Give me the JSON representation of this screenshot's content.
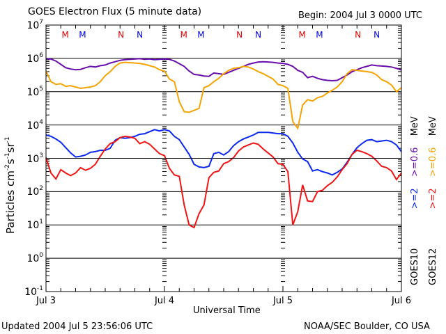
{
  "title": "GOES Electron Flux (5 minute data)",
  "begin_label": "Begin: 2004 Jul 3 0000 UTC",
  "updated_label": "Updated 2004 Jul  5 23:56:06 UTC",
  "credit_label": "NOAA/SEC Boulder, CO USA",
  "ylabel_main": "Particles cm",
  "ylabel_sup1": "-2",
  "ylabel_s": "s",
  "ylabel_sup2": "-1",
  "ylabel_sr": "sr",
  "ylabel_sup3": "-1",
  "legend": {
    "goes10": "GOES10",
    "goes12": "GOES12",
    "g10_ge2": ">=2",
    "g10_ge06": ">=0.6",
    "g12_ge2": ">=2",
    "g12_ge06": ">=0.6",
    "mev1": "MeV",
    "mev2": "MeV"
  },
  "markers": [
    {
      "label": "M",
      "hour": 3.9,
      "color": "#e00000"
    },
    {
      "label": "M",
      "hour": 7.4,
      "color": "#0000e0"
    },
    {
      "label": "N",
      "hour": 15.2,
      "color": "#e00000"
    },
    {
      "label": "N",
      "hour": 19.0,
      "color": "#0000e0"
    },
    {
      "label": "M",
      "hour": 27.9,
      "color": "#e00000"
    },
    {
      "label": "M",
      "hour": 31.4,
      "color": "#0000e0"
    },
    {
      "label": "N",
      "hour": 39.2,
      "color": "#e00000"
    },
    {
      "label": "N",
      "hour": 43.0,
      "color": "#0000e0"
    },
    {
      "label": "M",
      "hour": 51.9,
      "color": "#e00000"
    },
    {
      "label": "M",
      "hour": 55.4,
      "color": "#0000e0"
    },
    {
      "label": "N",
      "hour": 63.2,
      "color": "#e00000"
    },
    {
      "label": "N",
      "hour": 67.0,
      "color": "#0000e0"
    }
  ],
  "chart_data": {
    "type": "line",
    "title": "GOES Electron Flux (5 minute data)",
    "xlabel": "Universal Time",
    "ylabel": "Particles cm-2 s-1 sr-1",
    "yscale": "log",
    "ylim": [
      0.1,
      10000000
    ],
    "xlim_hours": [
      0,
      72
    ],
    "x_tick_labels": [
      {
        "hour": 0,
        "label": "Jul 3"
      },
      {
        "hour": 24,
        "label": "Jul 4"
      },
      {
        "hour": 48,
        "label": "Jul 5"
      },
      {
        "hour": 72,
        "label": "Jul 6"
      }
    ],
    "y_tick_labels": [
      {
        "exp": 7,
        "base": "10",
        "sup": "7"
      },
      {
        "exp": 6,
        "base": "10",
        "sup": "6"
      },
      {
        "exp": 5,
        "base": "10",
        "sup": "5"
      },
      {
        "exp": 4,
        "base": "10",
        "sup": "4"
      },
      {
        "exp": 3,
        "base": "10",
        "sup": "3"
      },
      {
        "exp": 2,
        "base": "10",
        "sup": "2"
      },
      {
        "exp": 1,
        "base": "10",
        "sup": "1"
      },
      {
        "exp": 0,
        "base": "10",
        "sup": "0"
      },
      {
        "exp": -1,
        "base": "10",
        "sup": "-1"
      }
    ],
    "threshold": {
      "value": 1000,
      "style": "dashed"
    },
    "grid": "horizontal at decades",
    "series": [
      {
        "name": "GOES10 >=0.6 MeV",
        "color": "#6a0dad",
        "hours": [
          0,
          1,
          2,
          3,
          4,
          5,
          6,
          7,
          8,
          9,
          10,
          11,
          12,
          13,
          14,
          15,
          16,
          17,
          18,
          19,
          20,
          21,
          22,
          23,
          24,
          25,
          26,
          27,
          28,
          29,
          30,
          31,
          32,
          33,
          34,
          35,
          36,
          37,
          38,
          39,
          40,
          41,
          42,
          43,
          44,
          45,
          46,
          47,
          48,
          49,
          50,
          51,
          52,
          53,
          54,
          55,
          56,
          57,
          58,
          59,
          60,
          61,
          62,
          63,
          64,
          65,
          66,
          67,
          68,
          69,
          70,
          71,
          72
        ],
        "log10": [
          5.98,
          5.98,
          5.92,
          5.82,
          5.72,
          5.68,
          5.66,
          5.67,
          5.72,
          5.76,
          5.74,
          5.78,
          5.8,
          5.86,
          5.9,
          5.94,
          5.96,
          5.97,
          5.98,
          5.99,
          5.97,
          5.98,
          5.96,
          5.97,
          5.98,
          5.97,
          5.92,
          5.84,
          5.76,
          5.62,
          5.52,
          5.5,
          5.47,
          5.46,
          5.56,
          5.54,
          5.52,
          5.58,
          5.64,
          5.7,
          5.76,
          5.82,
          5.86,
          5.89,
          5.9,
          5.89,
          5.88,
          5.86,
          5.85,
          5.82,
          5.76,
          5.64,
          5.58,
          5.42,
          5.46,
          5.4,
          5.36,
          5.34,
          5.33,
          5.34,
          5.42,
          5.5,
          5.6,
          5.66,
          5.72,
          5.76,
          5.8,
          5.78,
          5.77,
          5.76,
          5.74,
          5.7,
          5.65
        ]
      },
      {
        "name": "GOES12 >=0.6 MeV",
        "color": "#f5a300",
        "hours": [
          0,
          1,
          2,
          3,
          4,
          5,
          6,
          7,
          8,
          9,
          10,
          11,
          12,
          13,
          14,
          15,
          16,
          17,
          18,
          19,
          20,
          21,
          22,
          23,
          24,
          25,
          26,
          27,
          28,
          29,
          30,
          31,
          32,
          33,
          34,
          35,
          36,
          37,
          38,
          39,
          40,
          41,
          42,
          43,
          44,
          45,
          46,
          47,
          48,
          49,
          50,
          51,
          52,
          53,
          54,
          55,
          56,
          57,
          58,
          59,
          60,
          61,
          62,
          63,
          64,
          65,
          66,
          67,
          68,
          69,
          70,
          71,
          72
        ],
        "log10": [
          5.62,
          5.3,
          5.22,
          5.24,
          5.16,
          5.18,
          5.14,
          5.1,
          5.12,
          5.14,
          5.18,
          5.3,
          5.48,
          5.6,
          5.76,
          5.86,
          5.88,
          5.87,
          5.86,
          5.85,
          5.82,
          5.78,
          5.74,
          5.66,
          5.62,
          5.38,
          5.3,
          4.7,
          4.4,
          4.38,
          4.44,
          4.5,
          5.12,
          5.18,
          5.3,
          5.4,
          5.54,
          5.64,
          5.7,
          5.72,
          5.76,
          5.74,
          5.68,
          5.6,
          5.54,
          5.46,
          5.38,
          5.22,
          5.18,
          5.1,
          4.1,
          3.9,
          4.6,
          4.76,
          4.72,
          4.82,
          4.86,
          4.96,
          5.04,
          5.14,
          5.3,
          5.54,
          5.66,
          5.64,
          5.62,
          5.6,
          5.58,
          5.5,
          5.36,
          5.3,
          5.2,
          5.0,
          5.12
        ]
      },
      {
        "name": "GOES10 >=2 MeV",
        "color": "#0a28f0",
        "hours": [
          0,
          1,
          2,
          3,
          4,
          5,
          6,
          7,
          8,
          9,
          10,
          11,
          12,
          13,
          14,
          15,
          16,
          17,
          18,
          19,
          20,
          21,
          22,
          23,
          24,
          25,
          26,
          27,
          28,
          29,
          30,
          31,
          32,
          33,
          34,
          35,
          36,
          37,
          38,
          39,
          40,
          41,
          42,
          43,
          44,
          45,
          46,
          47,
          48,
          49,
          50,
          51,
          52,
          53,
          54,
          55,
          56,
          57,
          58,
          59,
          60,
          61,
          62,
          63,
          64,
          65,
          66,
          67,
          68,
          69,
          70,
          71,
          72
        ],
        "log10": [
          3.7,
          3.66,
          3.58,
          3.48,
          3.32,
          3.16,
          3.04,
          3.06,
          3.1,
          3.18,
          3.2,
          3.24,
          3.24,
          3.3,
          3.54,
          3.62,
          3.6,
          3.62,
          3.66,
          3.72,
          3.74,
          3.8,
          3.86,
          3.82,
          3.86,
          3.82,
          3.66,
          3.56,
          3.34,
          3.12,
          2.82,
          2.74,
          2.72,
          2.76,
          3.14,
          3.18,
          3.1,
          3.2,
          3.38,
          3.5,
          3.58,
          3.64,
          3.7,
          3.78,
          3.78,
          3.78,
          3.76,
          3.74,
          3.74,
          3.66,
          3.46,
          3.18,
          2.98,
          2.9,
          2.62,
          2.66,
          2.6,
          2.56,
          2.5,
          2.58,
          2.68,
          2.88,
          3.12,
          3.32,
          3.44,
          3.54,
          3.56,
          3.5,
          3.52,
          3.54,
          3.5,
          3.4,
          3.2
        ]
      },
      {
        "name": "GOES12 >=2 MeV",
        "color": "#f01414",
        "hours": [
          0,
          1,
          2,
          3,
          4,
          5,
          6,
          7,
          8,
          9,
          10,
          11,
          12,
          13,
          14,
          15,
          16,
          17,
          18,
          19,
          20,
          21,
          22,
          23,
          24,
          25,
          26,
          27,
          28,
          29,
          30,
          31,
          32,
          33,
          34,
          35,
          36,
          37,
          38,
          39,
          40,
          41,
          42,
          43,
          44,
          45,
          46,
          47,
          48,
          49,
          50,
          51,
          52,
          53,
          54,
          55,
          56,
          57,
          58,
          59,
          60,
          61,
          62,
          63,
          64,
          65,
          66,
          67,
          68,
          69,
          70,
          71,
          72
        ],
        "log10": [
          3.02,
          2.56,
          2.38,
          2.66,
          2.56,
          2.48,
          2.56,
          2.72,
          2.64,
          2.7,
          2.82,
          3.06,
          3.28,
          3.44,
          3.5,
          3.62,
          3.66,
          3.64,
          3.6,
          3.44,
          3.5,
          3.42,
          3.28,
          3.14,
          3.08,
          2.7,
          2.5,
          2.46,
          1.6,
          1.0,
          0.92,
          1.34,
          1.6,
          2.42,
          2.58,
          2.62,
          2.84,
          2.9,
          3.02,
          3.22,
          3.34,
          3.4,
          3.46,
          3.42,
          3.28,
          3.16,
          3.04,
          2.84,
          2.82,
          2.6,
          1.0,
          1.4,
          2.2,
          1.72,
          1.7,
          2.0,
          2.04,
          2.18,
          2.28,
          2.44,
          2.66,
          2.84,
          3.12,
          3.24,
          3.2,
          3.14,
          3.06,
          2.92,
          2.76,
          2.72,
          2.62,
          2.36,
          2.56
        ]
      }
    ]
  }
}
